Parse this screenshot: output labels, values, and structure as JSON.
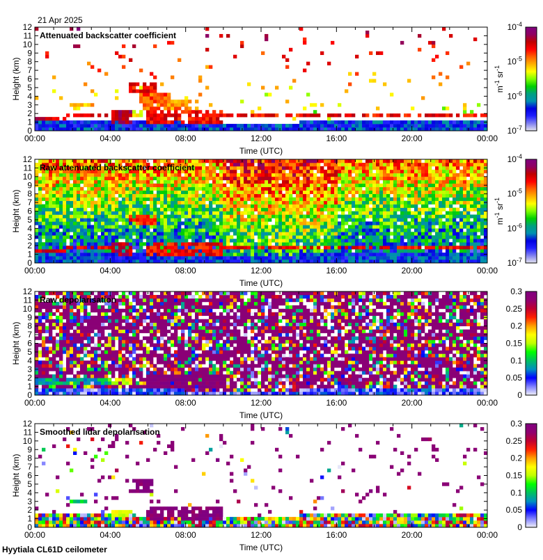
{
  "header": {
    "date": "21 Apr 2025"
  },
  "footer": {
    "site": "Hyytiala CL61D ceilometer"
  },
  "colors": {
    "backscatter_cmap": [
      "#e4e4ee",
      "#8080f0",
      "#2020ff",
      "#0000e0",
      "#0090b0",
      "#00a080",
      "#00d000",
      "#80ff00",
      "#ffff00",
      "#ffb000",
      "#ff6000",
      "#ff0000",
      "#c00000",
      "#900060",
      "#800080"
    ],
    "depol_cmap": [
      "#f0f0f8",
      "#8080ff",
      "#0000ff",
      "#0090c0",
      "#00c060",
      "#00ff00",
      "#c0ff00",
      "#ffff00",
      "#ffa000",
      "#ff2000",
      "#c00030",
      "#900070",
      "#800080"
    ]
  },
  "chart_data": [
    {
      "type": "heatmap",
      "kind": "bs",
      "title": "Attenuated backscatter coefficient",
      "xlabel": "Time (UTC)",
      "ylabel": "Height (km)",
      "xlim": [
        0,
        24
      ],
      "ylim": [
        0,
        12
      ],
      "xticks": [
        "00:00",
        "04:00",
        "08:00",
        "12:00",
        "16:00",
        "20:00",
        "00:00"
      ],
      "yticks": [
        "0",
        "1",
        "2",
        "3",
        "4",
        "5",
        "6",
        "7",
        "8",
        "9",
        "10",
        "11",
        "12"
      ],
      "colorbar": {
        "scale": "log",
        "range": [
          1e-07,
          0.0001
        ],
        "ticks": [
          {
            "base": "10",
            "exp": "-4"
          },
          {
            "base": "10",
            "exp": "-5"
          },
          {
            "base": "10",
            "exp": "-6"
          },
          {
            "base": "10",
            "exp": "-7"
          }
        ],
        "units": {
          "a": "m",
          "ae": "-1",
          "b": " sr",
          "be": "-1"
        }
      },
      "boundary_layer_top_km": [
        [
          0,
          1.3
        ],
        [
          4,
          1.1
        ],
        [
          8,
          1.0
        ],
        [
          12,
          0.9
        ],
        [
          16,
          1.1
        ],
        [
          20,
          1.2
        ],
        [
          24,
          1.2
        ]
      ],
      "layers": [
        {
          "t": [
            0,
            1.6
          ],
          "h": [
            1.3,
            1.7
          ],
          "v": 0.85
        },
        {
          "t": [
            1.6,
            4
          ],
          "h": [
            1.5,
            2.0
          ],
          "v": 0.8
        },
        {
          "t": [
            1.8,
            3.2
          ],
          "h": [
            2.8,
            3.2
          ],
          "v": 0.65
        },
        {
          "t": [
            4,
            5.2
          ],
          "h": [
            1.0,
            2.2
          ],
          "v": 0.88
        },
        {
          "t": [
            4.5,
            5.8
          ],
          "h": [
            1.6,
            2.6
          ],
          "v": 0.55
        },
        {
          "t": [
            5.0,
            6.5
          ],
          "h": [
            4.2,
            5.7
          ],
          "v": 0.8
        },
        {
          "t": [
            5.6,
            7.2
          ],
          "h": [
            2.2,
            4.2
          ],
          "v": 0.72
        },
        {
          "t": [
            6,
            10
          ],
          "h": [
            1.0,
            2.6
          ],
          "v": 0.8
        },
        {
          "t": [
            7,
            8.6
          ],
          "h": [
            2.5,
            3.8
          ],
          "v": 0.68
        },
        {
          "t": [
            10,
            24
          ],
          "h": [
            1.5,
            1.8
          ],
          "v": 0.8
        },
        {
          "t": [
            20.6,
            21.2
          ],
          "h": [
            10.0,
            10.3
          ],
          "v": 0.85
        }
      ],
      "noise_fraction": 0.04
    },
    {
      "type": "heatmap",
      "kind": "raw_bs",
      "title": "Raw attenuated backscatter coefficient",
      "xlabel": "Time (UTC)",
      "ylabel": "Height (km)",
      "xlim": [
        0,
        24
      ],
      "ylim": [
        0,
        12
      ],
      "xticks": [
        "00:00",
        "04:00",
        "08:00",
        "12:00",
        "16:00",
        "20:00",
        "00:00"
      ],
      "yticks": [
        "0",
        "1",
        "2",
        "3",
        "4",
        "5",
        "6",
        "7",
        "8",
        "9",
        "10",
        "11",
        "12"
      ],
      "colorbar": {
        "scale": "log",
        "range": [
          1e-07,
          0.0001
        ],
        "ticks": [
          {
            "base": "10",
            "exp": "-4"
          },
          {
            "base": "10",
            "exp": "-5"
          },
          {
            "base": "10",
            "exp": "-6"
          },
          {
            "base": "10",
            "exp": "-7"
          }
        ],
        "units": {
          "a": "m",
          "ae": "-1",
          "b": " sr",
          "be": "-1"
        }
      },
      "boundary_layer_top_km": [
        [
          0,
          1.3
        ],
        [
          4,
          1.1
        ],
        [
          8,
          1.0
        ],
        [
          12,
          0.9
        ],
        [
          16,
          1.1
        ],
        [
          20,
          1.2
        ],
        [
          24,
          1.2
        ]
      ],
      "layers": [
        {
          "t": [
            0,
            1.6
          ],
          "h": [
            1.3,
            1.7
          ],
          "v": 0.85
        },
        {
          "t": [
            1.6,
            4
          ],
          "h": [
            1.5,
            2.0
          ],
          "v": 0.8
        },
        {
          "t": [
            4,
            5.2
          ],
          "h": [
            1.0,
            2.2
          ],
          "v": 0.88
        },
        {
          "t": [
            5.0,
            6.5
          ],
          "h": [
            4.2,
            5.7
          ],
          "v": 0.75
        },
        {
          "t": [
            6,
            10
          ],
          "h": [
            1.0,
            2.6
          ],
          "v": 0.8
        },
        {
          "t": [
            10,
            24
          ],
          "h": [
            1.5,
            1.8
          ],
          "v": 0.8
        }
      ],
      "noise_fraction": 0.95
    },
    {
      "type": "heatmap",
      "kind": "depol",
      "title": "Raw depolarisation",
      "xlabel": "Time (UTC)",
      "ylabel": "Height (km)",
      "xlim": [
        0,
        24
      ],
      "ylim": [
        0,
        12
      ],
      "xticks": [
        "00:00",
        "04:00",
        "08:00",
        "12:00",
        "16:00",
        "20:00",
        "00:00"
      ],
      "yticks": [
        "0",
        "1",
        "2",
        "3",
        "4",
        "5",
        "6",
        "7",
        "8",
        "9",
        "10",
        "11",
        "12"
      ],
      "colorbar": {
        "scale": "linear",
        "range": [
          0,
          0.3
        ],
        "ticks": [
          {
            "base": "0.3"
          },
          {
            "base": "0.25"
          },
          {
            "base": "0.2"
          },
          {
            "base": "0.15"
          },
          {
            "base": "0.1"
          },
          {
            "base": "0.05"
          },
          {
            "base": "0"
          }
        ]
      },
      "boundary_layer_top_km": [
        [
          0,
          1.3
        ],
        [
          4,
          1.1
        ],
        [
          8,
          1.0
        ],
        [
          12,
          0.9
        ],
        [
          16,
          1.1
        ],
        [
          20,
          1.2
        ],
        [
          24,
          1.2
        ]
      ],
      "layers": [
        {
          "t": [
            0,
            4
          ],
          "h": [
            1.4,
            1.8
          ],
          "v": 0.3
        },
        {
          "t": [
            4,
            5.2
          ],
          "h": [
            1.2,
            1.9
          ],
          "v": 0.55
        },
        {
          "t": [
            6,
            10
          ],
          "h": [
            1.0,
            2.6
          ],
          "v": 0.97
        }
      ],
      "noise_fraction": 0.85
    },
    {
      "type": "heatmap",
      "kind": "smooth_depol",
      "title": "Smoothed lidar depolarisation",
      "xlabel": "Time (UTC)",
      "ylabel": "Height (km)",
      "xlim": [
        0,
        24
      ],
      "ylim": [
        0,
        12
      ],
      "xticks": [
        "00:00",
        "04:00",
        "08:00",
        "12:00",
        "16:00",
        "20:00",
        "00:00"
      ],
      "yticks": [
        "0",
        "1",
        "2",
        "3",
        "4",
        "5",
        "6",
        "7",
        "8",
        "9",
        "10",
        "11",
        "12"
      ],
      "colorbar": {
        "scale": "linear",
        "range": [
          0,
          0.3
        ],
        "ticks": [
          {
            "base": "0.3"
          },
          {
            "base": "0.25"
          },
          {
            "base": "0.2"
          },
          {
            "base": "0.15"
          },
          {
            "base": "0.1"
          },
          {
            "base": "0.05"
          },
          {
            "base": "0"
          }
        ]
      },
      "boundary_layer_top_km": [
        [
          0,
          1.6
        ],
        [
          4,
          1.5
        ],
        [
          8,
          1.2
        ],
        [
          12,
          1.3
        ],
        [
          16,
          1.5
        ],
        [
          20,
          1.6
        ],
        [
          24,
          1.6
        ]
      ],
      "layers": [
        {
          "t": [
            1.8,
            3
          ],
          "h": [
            3.0,
            3.3
          ],
          "v": 0.35
        },
        {
          "t": [
            4,
            5.2
          ],
          "h": [
            1.2,
            2.0
          ],
          "v": 0.55
        },
        {
          "t": [
            5.2,
            6.3
          ],
          "h": [
            4.0,
            5.5
          ],
          "v": 0.97
        },
        {
          "t": [
            6,
            10
          ],
          "h": [
            1.0,
            2.6
          ],
          "v": 0.97
        },
        {
          "t": [
            20.5,
            21.1
          ],
          "h": [
            10.1,
            10.3
          ],
          "v": 0.9
        }
      ],
      "noise_fraction": 0.05
    }
  ]
}
